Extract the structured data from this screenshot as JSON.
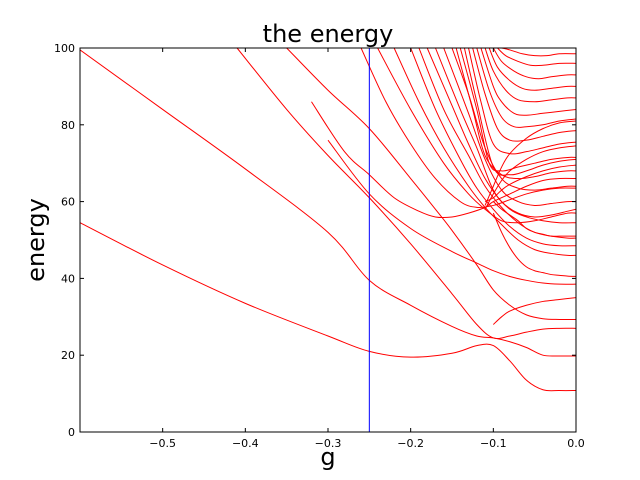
{
  "chart_data": {
    "type": "line",
    "title": "the energy",
    "xlabel": "g",
    "ylabel": "energy",
    "xlim": [
      -0.6,
      0.0
    ],
    "ylim": [
      0,
      100
    ],
    "xticks": [
      -0.5,
      -0.4,
      -0.3,
      -0.2,
      -0.1,
      0.0
    ],
    "xtick_labels": [
      "−0.5",
      "−0.4",
      "−0.3",
      "−0.2",
      "−0.1",
      "0.0"
    ],
    "yticks": [
      0,
      20,
      40,
      60,
      80,
      100
    ],
    "ytick_labels": [
      "0",
      "20",
      "40",
      "60",
      "80",
      "100"
    ],
    "grid": false,
    "line_color": "#ff0000",
    "marker_color": "#0000ff",
    "vertical_marker_x": -0.25,
    "series": [
      {
        "x": [
          -0.6,
          -0.5,
          -0.4,
          -0.3,
          -0.25,
          -0.2,
          -0.15,
          -0.12,
          -0.1,
          -0.08,
          -0.06,
          -0.04,
          -0.02,
          0.0
        ],
        "values": [
          54.5,
          43.5,
          33.5,
          25.0,
          21.0,
          19.5,
          20.5,
          22.5,
          22.5,
          18.5,
          13.5,
          11.0,
          10.8,
          10.8
        ]
      },
      {
        "x": [
          -0.6,
          -0.5,
          -0.4,
          -0.3,
          -0.25,
          -0.2,
          -0.15,
          -0.12,
          -0.1,
          -0.08,
          -0.06,
          -0.04,
          -0.02,
          0.0
        ],
        "values": [
          99.5,
          84.0,
          68.5,
          52.0,
          39.5,
          33.0,
          27.5,
          25.0,
          24.5,
          23.5,
          22.0,
          20.0,
          19.8,
          19.8
        ]
      },
      {
        "x": [
          -0.41,
          -0.35,
          -0.3,
          -0.25,
          -0.2,
          -0.15,
          -0.12,
          -0.1,
          -0.08,
          -0.06,
          -0.04,
          -0.02,
          0.0
        ],
        "values": [
          100.0,
          84.0,
          72.0,
          61.0,
          49.0,
          36.0,
          28.0,
          24.5,
          25.0,
          26.0,
          26.8,
          27.0,
          27.0
        ]
      },
      {
        "x": [
          -0.35,
          -0.3,
          -0.25,
          -0.2,
          -0.17,
          -0.15,
          -0.12,
          -0.1,
          -0.08,
          -0.06,
          -0.04,
          -0.02,
          0.0
        ],
        "values": [
          100.0,
          89.0,
          79.0,
          66.0,
          58.0,
          52.5,
          43.5,
          37.0,
          33.0,
          30.5,
          29.5,
          29.3,
          29.3
        ]
      },
      {
        "x": [
          -0.32,
          -0.28,
          -0.25,
          -0.22,
          -0.19,
          -0.17,
          -0.15,
          -0.13,
          -0.11,
          -0.1,
          -0.08,
          -0.06,
          -0.04,
          -0.02,
          0.0
        ],
        "values": [
          86.0,
          73.0,
          67.0,
          61.0,
          57.5,
          56.0,
          56.0,
          57.0,
          58.5,
          60.0,
          62.0,
          64.0,
          65.5,
          66.0,
          66.0
        ]
      },
      {
        "x": [
          -0.3,
          -0.25,
          -0.2,
          -0.15,
          -0.12,
          -0.1,
          -0.08,
          -0.06,
          -0.04,
          -0.02,
          0.0
        ],
        "values": [
          76.0,
          62.0,
          53.0,
          47.0,
          44.0,
          42.0,
          40.5,
          39.5,
          38.8,
          38.5,
          38.5
        ]
      },
      {
        "x": [
          -0.26,
          -0.23,
          -0.2,
          -0.17,
          -0.14,
          -0.12,
          -0.1,
          -0.08,
          -0.06,
          -0.04,
          -0.02,
          0.0
        ],
        "values": [
          100.0,
          86.0,
          75.0,
          66.0,
          60.0,
          58.5,
          59.0,
          60.5,
          62.0,
          63.0,
          63.5,
          63.5
        ]
      },
      {
        "x": [
          -0.24,
          -0.2,
          -0.16,
          -0.13,
          -0.11,
          -0.09,
          -0.07,
          -0.05,
          -0.03,
          -0.01,
          0.0
        ],
        "values": [
          100.0,
          84.0,
          70.0,
          62.0,
          58.0,
          55.0,
          54.5,
          55.0,
          56.0,
          57.0,
          57.0
        ]
      },
      {
        "x": [
          -0.22,
          -0.19,
          -0.16,
          -0.13,
          -0.11,
          -0.09,
          -0.07,
          -0.05,
          -0.03,
          -0.01,
          0.0
        ],
        "values": [
          100.0,
          86.0,
          74.0,
          64.0,
          58.5,
          54.0,
          50.0,
          47.5,
          46.5,
          46.0,
          46.0
        ]
      },
      {
        "x": [
          -0.2,
          -0.17,
          -0.14,
          -0.12,
          -0.1,
          -0.08,
          -0.06,
          -0.04,
          -0.02,
          0.0
        ],
        "values": [
          100.0,
          84.0,
          71.0,
          63.5,
          58.0,
          53.5,
          50.5,
          49.0,
          48.5,
          48.5
        ]
      },
      {
        "x": [
          -0.19,
          -0.16,
          -0.13,
          -0.11,
          -0.09,
          -0.07,
          -0.05,
          -0.03,
          -0.01,
          0.0
        ],
        "values": [
          100.0,
          84.0,
          72.0,
          64.0,
          58.5,
          54.5,
          52.0,
          51.0,
          50.5,
          50.5
        ]
      },
      {
        "x": [
          -0.18,
          -0.15,
          -0.13,
          -0.11,
          -0.09,
          -0.07,
          -0.05,
          -0.03,
          -0.01,
          0.0
        ],
        "values": [
          100.0,
          85.0,
          75.0,
          66.0,
          60.0,
          57.0,
          56.0,
          56.5,
          57.5,
          58.0
        ]
      },
      {
        "x": [
          -0.17,
          -0.14,
          -0.12,
          -0.1,
          -0.08,
          -0.06,
          -0.04,
          -0.02,
          0.0
        ],
        "values": [
          100.0,
          84.0,
          74.0,
          63.0,
          58.0,
          56.0,
          55.0,
          54.5,
          54.5
        ]
      },
      {
        "x": [
          -0.16,
          -0.13,
          -0.11,
          -0.09,
          -0.07,
          -0.05,
          -0.03,
          -0.01,
          0.0
        ],
        "values": [
          100.0,
          83.0,
          71.0,
          63.0,
          60.0,
          59.0,
          59.5,
          60.0,
          60.0
        ]
      },
      {
        "x": [
          -0.15,
          -0.13,
          -0.11,
          -0.09,
          -0.07,
          -0.05,
          -0.03,
          -0.01,
          0.0
        ],
        "values": [
          100.0,
          88.0,
          74.0,
          66.0,
          63.5,
          63.0,
          63.5,
          64.0,
          64.0
        ]
      },
      {
        "x": [
          -0.145,
          -0.125,
          -0.11,
          -0.09,
          -0.07,
          -0.05,
          -0.03,
          -0.01,
          0.0
        ],
        "values": [
          100.0,
          84.0,
          72.0,
          67.0,
          66.0,
          66.5,
          67.5,
          68.0,
          68.0
        ]
      },
      {
        "x": [
          -0.14,
          -0.12,
          -0.105,
          -0.09,
          -0.07,
          -0.05,
          -0.03,
          -0.01,
          0.0
        ],
        "values": [
          100.0,
          84.0,
          70.0,
          68.0,
          69.0,
          70.0,
          71.0,
          71.5,
          71.5
        ]
      },
      {
        "x": [
          -0.135,
          -0.12,
          -0.1,
          -0.08,
          -0.06,
          -0.04,
          -0.02,
          0.0
        ],
        "values": [
          100.0,
          86.0,
          69.0,
          67.0,
          68.0,
          69.5,
          70.5,
          71.0
        ]
      },
      {
        "x": [
          -0.13,
          -0.115,
          -0.1,
          -0.08,
          -0.06,
          -0.04,
          -0.02,
          0.0
        ],
        "values": [
          100.0,
          86.0,
          75.0,
          72.5,
          73.0,
          74.0,
          75.0,
          75.5
        ]
      },
      {
        "x": [
          -0.125,
          -0.11,
          -0.095,
          -0.08,
          -0.06,
          -0.04,
          -0.02,
          0.0
        ],
        "values": [
          100.0,
          88.0,
          79.0,
          76.0,
          76.0,
          77.0,
          78.0,
          78.5
        ]
      },
      {
        "x": [
          -0.12,
          -0.105,
          -0.09,
          -0.075,
          -0.06,
          -0.04,
          -0.02,
          0.0
        ],
        "values": [
          100.0,
          89.0,
          82.0,
          79.5,
          79.5,
          80.0,
          81.0,
          81.5
        ]
      },
      {
        "x": [
          -0.115,
          -0.1,
          -0.09,
          -0.075,
          -0.06,
          -0.04,
          -0.02,
          0.0
        ],
        "values": [
          100.0,
          90.0,
          86.0,
          83.0,
          82.5,
          83.0,
          83.5,
          84.0
        ]
      },
      {
        "x": [
          -0.11,
          -0.1,
          -0.085,
          -0.07,
          -0.05,
          -0.03,
          -0.01,
          0.0
        ],
        "values": [
          100.0,
          94.0,
          89.0,
          86.5,
          86.0,
          86.5,
          87.0,
          87.0
        ]
      },
      {
        "x": [
          -0.105,
          -0.095,
          -0.08,
          -0.065,
          -0.05,
          -0.03,
          -0.01,
          0.0
        ],
        "values": [
          100.0,
          95.0,
          91.5,
          89.5,
          89.0,
          89.5,
          90.0,
          90.0
        ]
      },
      {
        "x": [
          -0.1,
          -0.09,
          -0.075,
          -0.06,
          -0.045,
          -0.03,
          -0.01,
          0.0
        ],
        "values": [
          100.0,
          96.5,
          94.0,
          92.5,
          92.0,
          92.5,
          93.0,
          93.0
        ]
      },
      {
        "x": [
          -0.095,
          -0.085,
          -0.07,
          -0.055,
          -0.04,
          -0.02,
          0.0
        ],
        "values": [
          100.0,
          98.0,
          96.5,
          95.5,
          95.5,
          96.0,
          96.0
        ]
      },
      {
        "x": [
          -0.09,
          -0.08,
          -0.065,
          -0.05,
          -0.035,
          -0.02,
          0.0
        ],
        "values": [
          100.0,
          99.5,
          98.5,
          98.0,
          98.0,
          98.5,
          98.5
        ]
      },
      {
        "x": [
          -0.1,
          -0.09,
          -0.08,
          -0.07,
          -0.06,
          -0.05,
          -0.04,
          -0.03,
          -0.02,
          -0.01,
          0.0
        ],
        "values": [
          57.0,
          52.0,
          48.0,
          45.0,
          43.0,
          42.0,
          41.5,
          41.0,
          40.8,
          40.6,
          40.5
        ]
      },
      {
        "x": [
          -0.1,
          -0.09,
          -0.08,
          -0.07,
          -0.06,
          -0.05,
          -0.04,
          -0.03,
          -0.02,
          -0.01,
          0.0
        ],
        "values": [
          60.0,
          58.0,
          56.5,
          55.0,
          53.0,
          52.0,
          51.5,
          51.0,
          51.0,
          51.0,
          51.0
        ]
      },
      {
        "x": [
          -0.1,
          -0.09,
          -0.08,
          -0.06,
          -0.04,
          -0.02,
          0.0
        ],
        "values": [
          28.0,
          30.0,
          31.5,
          33.0,
          34.0,
          34.5,
          35.0
        ]
      },
      {
        "x": [
          -0.11,
          -0.1,
          -0.09,
          -0.08,
          -0.06,
          -0.04,
          -0.02,
          0.0
        ],
        "values": [
          60.0,
          61.0,
          63.0,
          64.5,
          66.5,
          68.0,
          69.0,
          69.5
        ]
      },
      {
        "x": [
          -0.11,
          -0.1,
          -0.09,
          -0.08,
          -0.06,
          -0.04,
          -0.02,
          0.0
        ],
        "values": [
          58.0,
          62.0,
          65.5,
          68.0,
          71.0,
          73.0,
          74.0,
          74.5
        ]
      },
      {
        "x": [
          -0.11,
          -0.1,
          -0.09,
          -0.08,
          -0.06,
          -0.04,
          -0.02,
          0.0
        ],
        "values": [
          59.0,
          64.0,
          69.0,
          72.5,
          76.5,
          79.0,
          80.5,
          81.0
        ]
      }
    ]
  }
}
